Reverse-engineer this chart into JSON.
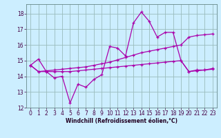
{
  "xlabel": "Windchill (Refroidissement éolien,°C)",
  "background_color": "#cceeff",
  "line_color": "#aa00aa",
  "grid_color": "#99bbbb",
  "xlim": [
    -0.5,
    23.5
  ],
  "ylim": [
    12,
    18.6
  ],
  "yticks": [
    12,
    13,
    14,
    15,
    16,
    17,
    18
  ],
  "xticks": [
    0,
    1,
    2,
    3,
    4,
    5,
    6,
    7,
    8,
    9,
    10,
    11,
    12,
    13,
    14,
    15,
    16,
    17,
    18,
    19,
    20,
    21,
    22,
    23
  ],
  "line1_x": [
    0,
    1,
    2,
    3,
    4,
    5,
    6,
    7,
    8,
    9,
    10,
    11,
    12,
    13,
    14,
    15,
    16,
    17,
    18,
    19,
    20,
    21,
    22,
    23
  ],
  "line1_y": [
    14.7,
    15.1,
    14.3,
    13.9,
    14.0,
    12.3,
    13.5,
    13.3,
    13.8,
    14.1,
    15.9,
    15.8,
    15.3,
    17.4,
    18.1,
    17.5,
    16.5,
    16.8,
    16.8,
    15.0,
    14.3,
    14.4,
    14.4,
    14.5
  ],
  "line2_x": [
    0,
    1,
    2,
    3,
    4,
    5,
    6,
    7,
    8,
    9,
    10,
    11,
    12,
    13,
    14,
    15,
    16,
    17,
    18,
    19,
    20,
    21,
    22,
    23
  ],
  "line2_y": [
    14.7,
    14.3,
    14.35,
    14.4,
    14.45,
    14.5,
    14.55,
    14.6,
    14.7,
    14.8,
    14.9,
    15.05,
    15.2,
    15.35,
    15.5,
    15.6,
    15.7,
    15.8,
    15.9,
    16.0,
    16.5,
    16.6,
    16.65,
    16.7
  ],
  "line3_x": [
    0,
    1,
    2,
    3,
    4,
    5,
    6,
    7,
    8,
    9,
    10,
    11,
    12,
    13,
    14,
    15,
    16,
    17,
    18,
    19,
    20,
    21,
    22,
    23
  ],
  "line3_y": [
    14.7,
    14.3,
    14.3,
    14.3,
    14.3,
    14.3,
    14.35,
    14.4,
    14.45,
    14.5,
    14.55,
    14.6,
    14.65,
    14.7,
    14.75,
    14.8,
    14.85,
    14.9,
    14.95,
    15.0,
    14.3,
    14.35,
    14.4,
    14.45
  ]
}
